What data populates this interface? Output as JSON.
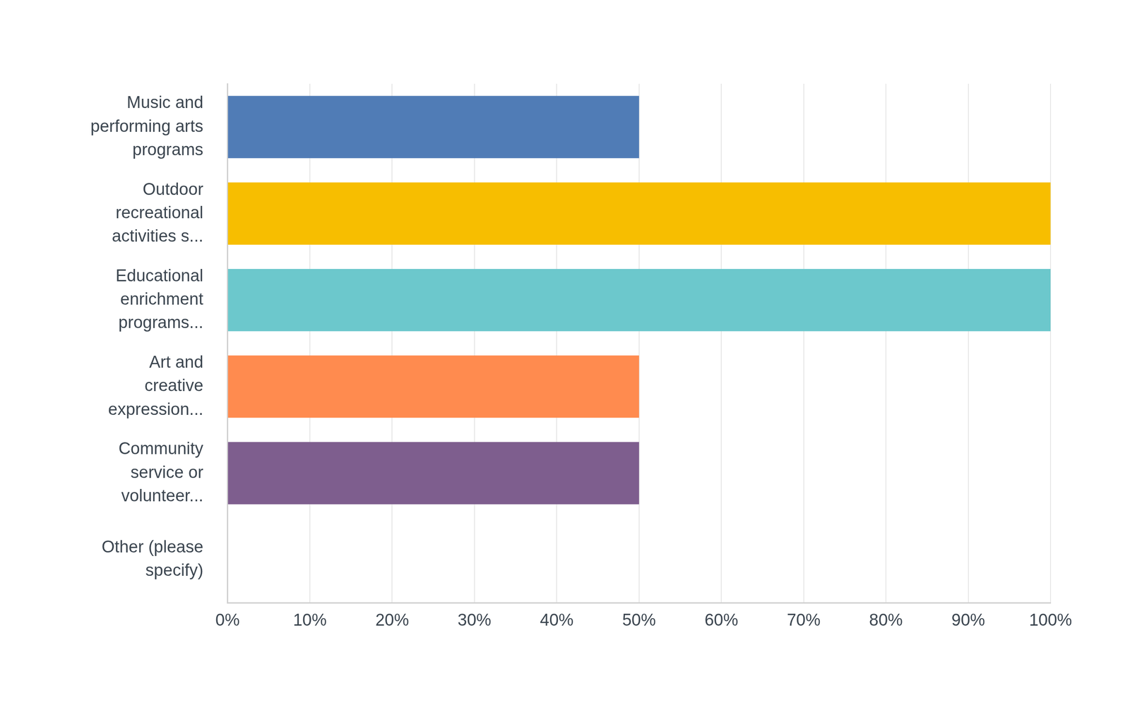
{
  "chart_data": {
    "type": "bar",
    "orientation": "horizontal",
    "categories": [
      "Music and performing arts programs",
      "Outdoor recreational activities s...",
      "Educational enrichment programs...",
      "Art and creative expression...",
      "Community service or volunteer...",
      "Other (please specify)"
    ],
    "values": [
      50,
      100,
      100,
      50,
      50,
      0
    ],
    "colors": [
      "#507cb6",
      "#f7be00",
      "#6cc8cc",
      "#ff8b4f",
      "#7e5e8e",
      "#d25f90"
    ],
    "xlim": [
      0,
      100
    ],
    "xticks": [
      {
        "value": 0,
        "label": "0%"
      },
      {
        "value": 10,
        "label": "10%"
      },
      {
        "value": 20,
        "label": "20%"
      },
      {
        "value": 30,
        "label": "30%"
      },
      {
        "value": 40,
        "label": "40%"
      },
      {
        "value": 50,
        "label": "50%"
      },
      {
        "value": 60,
        "label": "60%"
      },
      {
        "value": 70,
        "label": "70%"
      },
      {
        "value": 80,
        "label": "80%"
      },
      {
        "value": 90,
        "label": "90%"
      },
      {
        "value": 100,
        "label": "100%"
      }
    ],
    "grid": true
  }
}
